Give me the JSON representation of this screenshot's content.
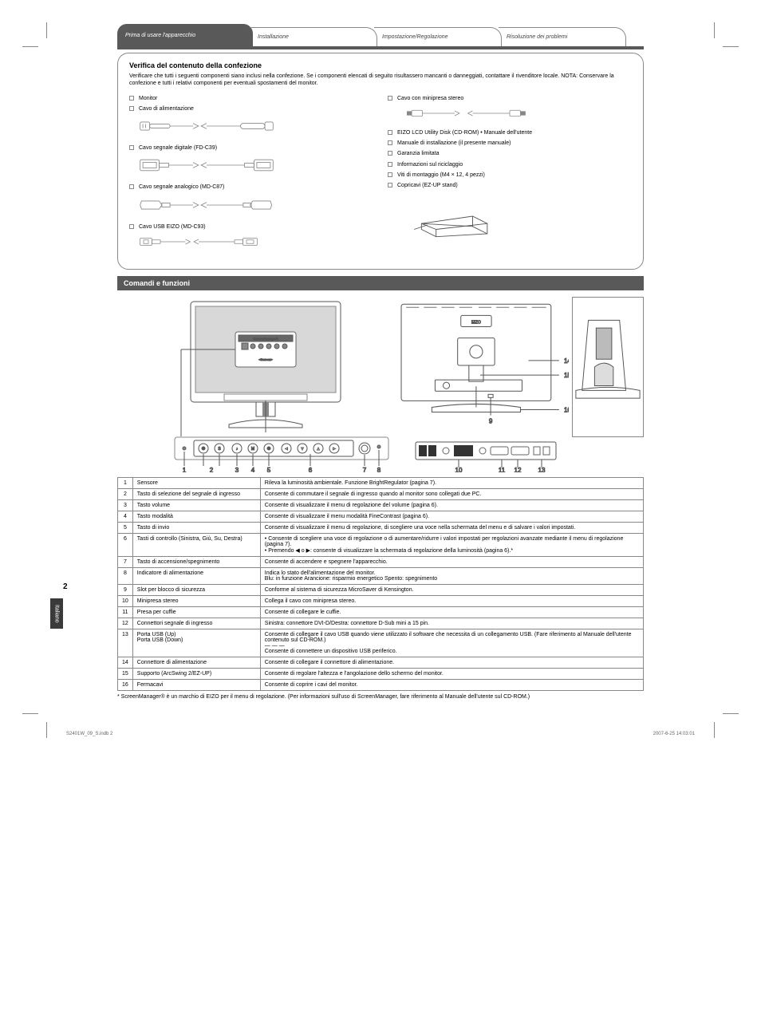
{
  "tabs": {
    "active": "Prima di usare l'apparecchio",
    "inactive": [
      "Installazione",
      "Impostazione/Regolazione",
      "Risoluzione dei problemi"
    ]
  },
  "package": {
    "title": "Verifica del contenuto della confezione",
    "note": "Verificare che tutti i seguenti componenti siano inclusi nella confezione. Se i componenti elencati di seguito risultassero mancanti o danneggiati, contattare il rivenditore locale.\nNOTA: Conservare la confezione e tutti i relativi componenti per eventuali spostamenti del monitor.",
    "left": [
      {
        "label": "Monitor",
        "illus": "none"
      },
      {
        "label": "Cavo di alimentazione",
        "illus": "power"
      },
      {
        "label": "Cavo segnale digitale (FD-C39)",
        "illus": "dvi"
      },
      {
        "label": "Cavo segnale analogico (MD-C87)",
        "illus": "vga"
      },
      {
        "label": "Cavo USB EIZO (MD-C93)",
        "illus": "usb"
      }
    ],
    "right": [
      {
        "label": "Cavo con minipresa stereo",
        "illus": "stereo"
      },
      {
        "label": "EIZO LCD Utility Disk (CD-ROM)\n• Manuale dell'utente",
        "illus": "none"
      },
      {
        "label": "Manuale di installazione (il presente manuale)",
        "illus": "none"
      },
      {
        "label": "Garanzia limitata",
        "illus": "none"
      },
      {
        "label": "Informazioni sul riciclaggio",
        "illus": "none"
      },
      {
        "label": "Viti di montaggio (M4 × 12, 4 pezzi)",
        "illus": "none"
      },
      {
        "label": "Copricavi (EZ-UP stand)",
        "illus": "holder"
      }
    ]
  },
  "section_title": "Comandi e funzioni",
  "diagram": {
    "menu_title": "ScreenManager®",
    "menu_sub": "<Screen>",
    "front_numbers": [
      "1",
      "2",
      "3",
      "4",
      "5",
      "6",
      "7",
      "8"
    ],
    "back_numbers": [
      "9",
      "10",
      "11",
      "12",
      "13",
      "14",
      "15",
      "16"
    ],
    "brand": "EIZO"
  },
  "table": {
    "rows": [
      {
        "num": "1",
        "name": "Sensore",
        "desc": "Rileva la luminosità ambientale. Funzione BrightRegulator (pagina 7)."
      },
      {
        "num": "2",
        "name": "Tasto di selezione del segnale di ingresso",
        "desc": "Consente di commutare il segnale di ingresso quando al monitor sono collegati due PC."
      },
      {
        "num": "3",
        "name": "Tasto volume",
        "desc": "Consente di visualizzare il menu di regolazione del volume (pagina 6)."
      },
      {
        "num": "4",
        "name": "Tasto modalità",
        "desc": "Consente di visualizzare il menu modalità FineContrast (pagina 6)."
      },
      {
        "num": "5",
        "name": "Tasto di invio",
        "desc": "Consente di visualizzare il menu di regolazione, di scegliere una voce nella schermata del menu e di salvare i valori impostati."
      },
      {
        "num": "6",
        "name": "Tasti di controllo (Sinistra, Giù, Su, Destra)",
        "desc": "• Consente di scegliere una voce di regolazione o di aumentare/ridurre i valori impostati per regolazioni avanzate mediante il menu di regolazione (pagina 7).\n• Premendo ◀ o ▶: consente di visualizzare la schermata di regolazione della luminosità (pagina 6).*"
      },
      {
        "num": "7",
        "name": "Tasto di accensione/spegnimento",
        "desc": "Consente di accendere e spegnere l'apparecchio."
      },
      {
        "num": "8",
        "name": "Indicatore di alimentazione",
        "desc": "Indica lo stato dell'alimentazione del monitor.\nBlu: in funzione   Arancione: risparmio energetico   Spento: spegnimento"
      },
      {
        "num": "9",
        "name": "Slot per blocco di sicurezza",
        "desc": "Conforme al sistema di sicurezza MicroSaver di Kensington."
      },
      {
        "num": "10",
        "name": "Minipresa stereo",
        "desc": "Collega il cavo con minipresa stereo."
      },
      {
        "num": "11",
        "name": "Presa per cuffie",
        "desc": "Consente di collegare le cuffie."
      },
      {
        "num": "12",
        "name": "Connettori segnale di ingresso",
        "desc": "Sinistra: connettore DVI-D/Destra: connettore D-Sub mini a 15 pin."
      },
      {
        "num": "13",
        "name": "Porta USB (Up)\nPorta USB (Down)",
        "desc": "Consente di collegare il cavo USB quando viene utilizzato il software che necessita di un collegamento USB. (Fare riferimento al Manuale dell'utente contenuto sul CD-ROM.)\n— — —\nConsente di connettere un dispositivo USB periferico."
      },
      {
        "num": "14",
        "name": "Connettore di alimentazione",
        "desc": "Consente di collegare il connettore di alimentazione."
      },
      {
        "num": "15",
        "name": "Supporto (ArcSwing 2/EZ-UP)",
        "desc": "Consente di regolare l'altezza e l'angolazione dello schermo del monitor."
      },
      {
        "num": "16",
        "name": "Fermacavi",
        "desc": "Consente di coprire i cavi del monitor."
      }
    ],
    "footnote": "* ScreenManager® è un marchio di EIZO per il menu di regolazione. (Per informazioni sull'uso di ScreenManager, fare riferimento al Manuale dell'utente sul CD-ROM.)"
  },
  "side": {
    "page_num": "2",
    "lang": "Italiano"
  },
  "footer": {
    "left": "S2401W_09_S.indb   2",
    "right": "2007-6-25   14:03:01"
  },
  "colors": {
    "bar": "#595959",
    "border": "#888888",
    "text": "#1a1a1a"
  }
}
